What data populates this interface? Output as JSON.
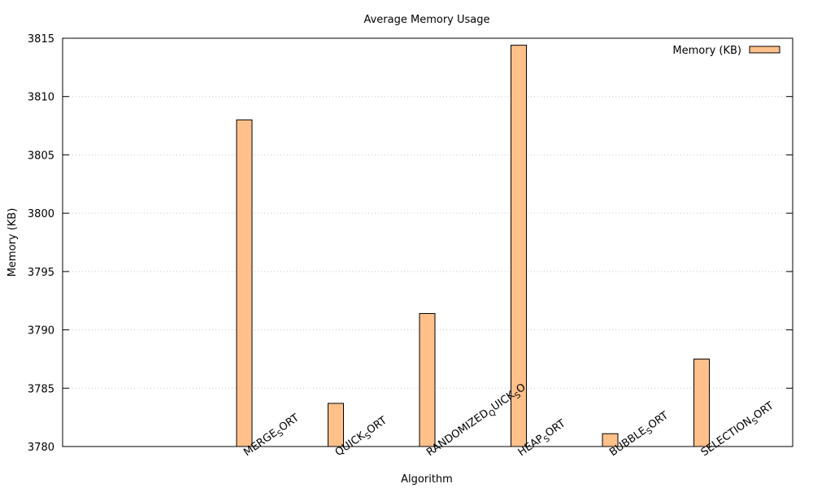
{
  "chart_data": {
    "type": "bar",
    "title": "Average Memory Usage",
    "xlabel": "Algorithm",
    "ylabel": "Memory (KB)",
    "ylim": [
      3780,
      3815
    ],
    "yticks": [
      3780,
      3785,
      3790,
      3795,
      3800,
      3805,
      3810,
      3815
    ],
    "grid": "horizontal dotted",
    "legend_position": "top-right",
    "categories": [
      "MERGE_SORT",
      "QUICK_SORT",
      "RANDOMIZED_QUICK_SORT",
      "HEAP_SORT",
      "BUBBLE_SORT",
      "SELECTION_SORT"
    ],
    "category_labels": [
      {
        "main": "MERGE",
        "sub": "S",
        "tail": "ORT"
      },
      {
        "main": "QUICK",
        "sub": "S",
        "tail": "ORT"
      },
      {
        "main": "RANDOMIZED",
        "sub": "Q",
        "tail": "UICK",
        "sub2": "S",
        "tail2": "O"
      },
      {
        "main": "HEAP",
        "sub": "S",
        "tail": "ORT"
      },
      {
        "main": "BUBBLE",
        "sub": "S",
        "tail": "ORT"
      },
      {
        "main": "SELECTION",
        "sub": "S",
        "tail": "ORT"
      }
    ],
    "series": [
      {
        "name": "Memory (KB)",
        "color": "#ffc08a",
        "values": [
          3808.0,
          3783.7,
          3791.4,
          3814.4,
          3781.1,
          3787.5
        ]
      }
    ]
  }
}
